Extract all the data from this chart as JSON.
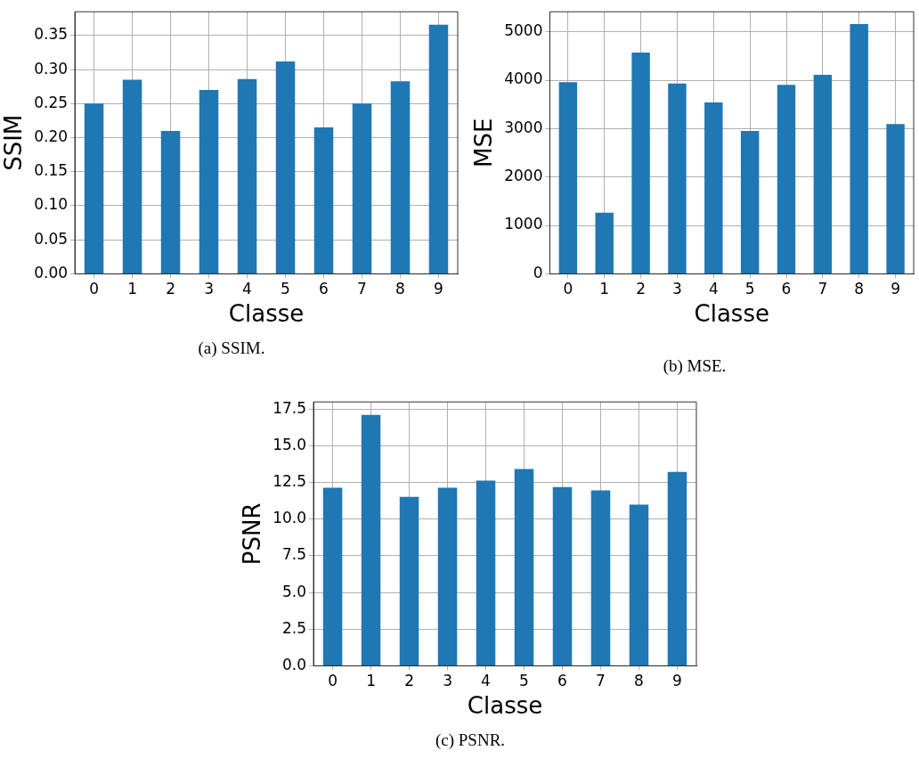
{
  "chart_data": [
    {
      "type": "bar",
      "xlabel": "Classe",
      "ylabel": "SSIM",
      "categories": [
        "0",
        "1",
        "2",
        "3",
        "4",
        "5",
        "6",
        "7",
        "8",
        "9"
      ],
      "values": [
        0.25,
        0.285,
        0.21,
        0.27,
        0.286,
        0.312,
        0.215,
        0.25,
        0.283,
        0.366
      ],
      "color": "#1f77b4",
      "ylim": [
        0,
        0.385
      ],
      "yticks": [
        {
          "value": 0,
          "label": "0.00"
        },
        0.05,
        {
          "value": 0.1,
          "label": "0.10"
        },
        0.15,
        {
          "value": 0.2,
          "label": "0.20"
        },
        0.25,
        {
          "value": 0.3,
          "label": "0.30"
        },
        0.35
      ],
      "grid": true,
      "annotations": [
        "(a) SSIM."
      ]
    },
    {
      "type": "bar",
      "xlabel": "Classe",
      "ylabel": "MSE",
      "categories": [
        "0",
        "1",
        "2",
        "3",
        "4",
        "5",
        "6",
        "7",
        "8",
        "9"
      ],
      "values": [
        3962,
        1263,
        4573,
        3932,
        3541,
        2954,
        3903,
        4110,
        5160,
        3096
      ],
      "color": "#1f77b4",
      "ylim": [
        0,
        5415
      ],
      "yticks": [
        0,
        1000,
        2000,
        3000,
        4000,
        5000
      ],
      "grid": true,
      "annotations": [
        "(b) MSE."
      ]
    },
    {
      "type": "bar",
      "xlabel": "Classe",
      "ylabel": "PSNR",
      "categories": [
        "0",
        "1",
        "2",
        "3",
        "4",
        "5",
        "6",
        "7",
        "8",
        "9"
      ],
      "values": [
        12.15,
        17.11,
        11.53,
        12.15,
        12.64,
        13.42,
        12.19,
        11.96,
        10.99,
        13.22
      ],
      "color": "#1f77b4",
      "ylim": [
        0,
        18.0
      ],
      "yticks": [
        {
          "value": 0,
          "label": "0.0"
        },
        2.5,
        {
          "value": 5,
          "label": "5.0"
        },
        7.5,
        {
          "value": 10,
          "label": "10.0"
        },
        12.5,
        {
          "value": 15,
          "label": "15.0"
        },
        17.5
      ],
      "grid": true,
      "annotations": [
        "(c) PSNR."
      ]
    }
  ]
}
